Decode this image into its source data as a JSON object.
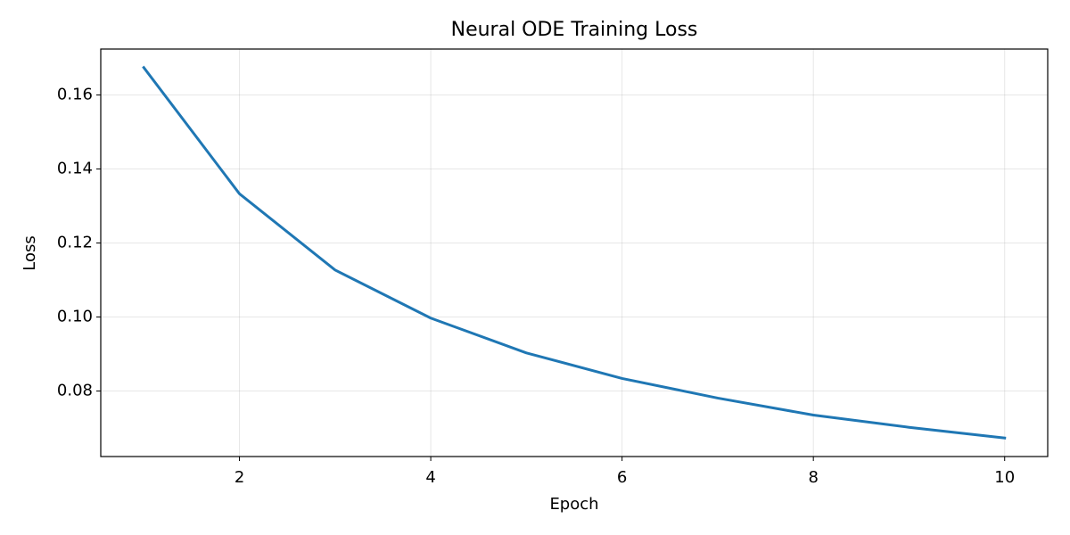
{
  "chart_data": {
    "type": "line",
    "title": "Neural ODE Training Loss",
    "x_label": "Epoch",
    "y_label": "Loss",
    "x": [
      1,
      2,
      3,
      4,
      5,
      6,
      7,
      8,
      9,
      10
    ],
    "series": [
      {
        "color": "#1f77b4",
        "values": [
          0.1674,
          0.1333,
          0.1127,
          0.0997,
          0.0903,
          0.0834,
          0.0781,
          0.0735,
          0.0702,
          0.0673
        ]
      }
    ],
    "xlim": [
      0.55,
      10.45
    ],
    "xticks": [
      2,
      4,
      6,
      8,
      10
    ],
    "ylim": [
      0.0623,
      0.1724
    ],
    "yticks": [
      0.08,
      {
        "value": 0.1,
        "label": "0.10"
      },
      0.12,
      0.14,
      0.16
    ],
    "grid": true
  }
}
